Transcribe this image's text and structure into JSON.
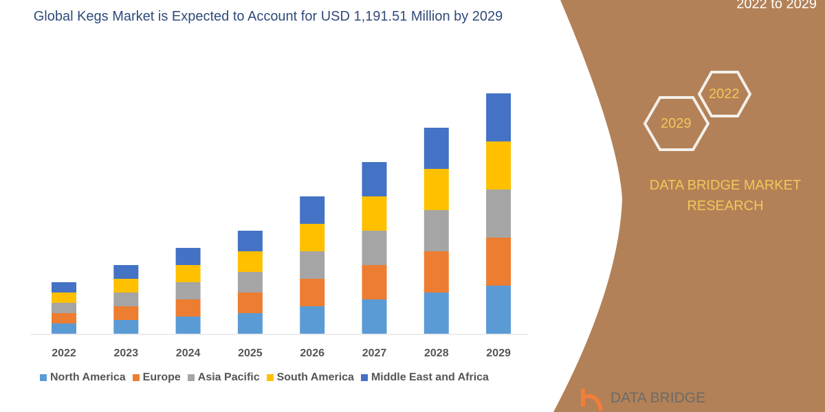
{
  "title": "Global Kegs Market is Expected to Account for USD 1,191.51 Million by 2029",
  "subtitle": "2022 to 2029",
  "badges": {
    "start": "2022",
    "end": "2029"
  },
  "brand": "DATA BRIDGE MARKET RESEARCH",
  "logo_text": "DATA BRIDGE",
  "colors": {
    "panel": "#b38157",
    "accent_text": "#f2c75a"
  },
  "chart_data": {
    "type": "bar",
    "stacked": true,
    "title": "Global Kegs Market is Expected to Account for USD 1,191.51 Million by 2029",
    "categories": [
      "2022",
      "2023",
      "2024",
      "2025",
      "2026",
      "2027",
      "2028",
      "2029"
    ],
    "series": [
      {
        "name": "North America",
        "color": "#5b9bd5",
        "values": [
          15,
          20,
          25,
          30,
          40,
          50,
          60,
          70
        ]
      },
      {
        "name": "Europe",
        "color": "#ed7d31",
        "values": [
          15,
          20,
          25,
          30,
          40,
          50,
          60,
          70
        ]
      },
      {
        "name": "Asia Pacific",
        "color": "#a5a5a5",
        "values": [
          15,
          20,
          25,
          30,
          40,
          50,
          60,
          70
        ]
      },
      {
        "name": "South America",
        "color": "#ffc000",
        "values": [
          15,
          20,
          25,
          30,
          40,
          50,
          60,
          70
        ]
      },
      {
        "name": "Middle East and Africa",
        "color": "#4472c4",
        "values": [
          15,
          20,
          25,
          30,
          40,
          50,
          60,
          70
        ]
      }
    ],
    "legend": "bottom",
    "grid": false,
    "y_axis_shown": false
  }
}
